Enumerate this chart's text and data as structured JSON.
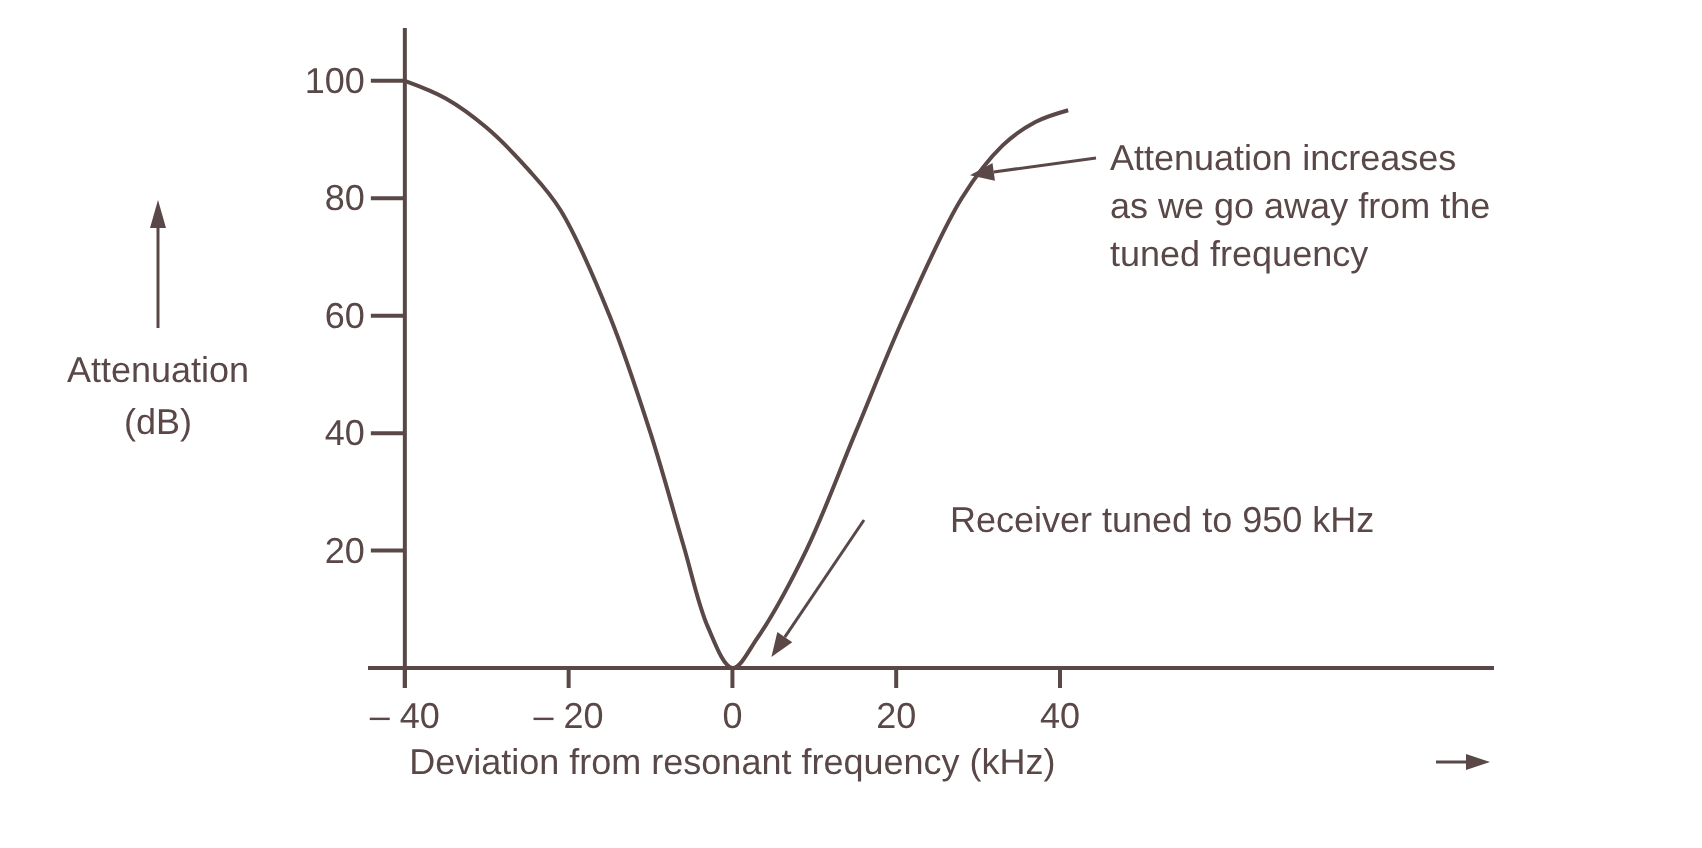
{
  "chart_data": {
    "type": "line",
    "xlabel": "Deviation from resonant frequency (kHz)",
    "ylabel": "Attenuation\n(dB)",
    "xlim": [
      -44.5,
      93
    ],
    "ylim": [
      0,
      109
    ],
    "xticks": [
      {
        "value": -40,
        "label": "– 40"
      },
      {
        "value": -20,
        "label": "– 20"
      },
      0,
      20,
      40
    ],
    "yticks": [
      {
        "value": 0,
        "label": null
      },
      20,
      40,
      60,
      80,
      100
    ],
    "grid": false,
    "marker": "none",
    "line_style": "solid",
    "series": [
      {
        "color": "#5a4848",
        "x": [
          -40,
          -35,
          -30,
          -25,
          -21,
          -15,
          -10,
          -6,
          -3,
          0,
          3,
          9,
          15,
          21,
          28,
          33,
          37,
          41
        ],
        "values": [
          100,
          97,
          92,
          85,
          78,
          60,
          40,
          21,
          7,
          0,
          5,
          20,
          40,
          60,
          80,
          89,
          93,
          95
        ]
      }
    ],
    "annotations": [
      "Attenuation increases\nas we go away from the\ntuned frequency",
      "Receiver tuned to 950 kHz"
    ]
  }
}
